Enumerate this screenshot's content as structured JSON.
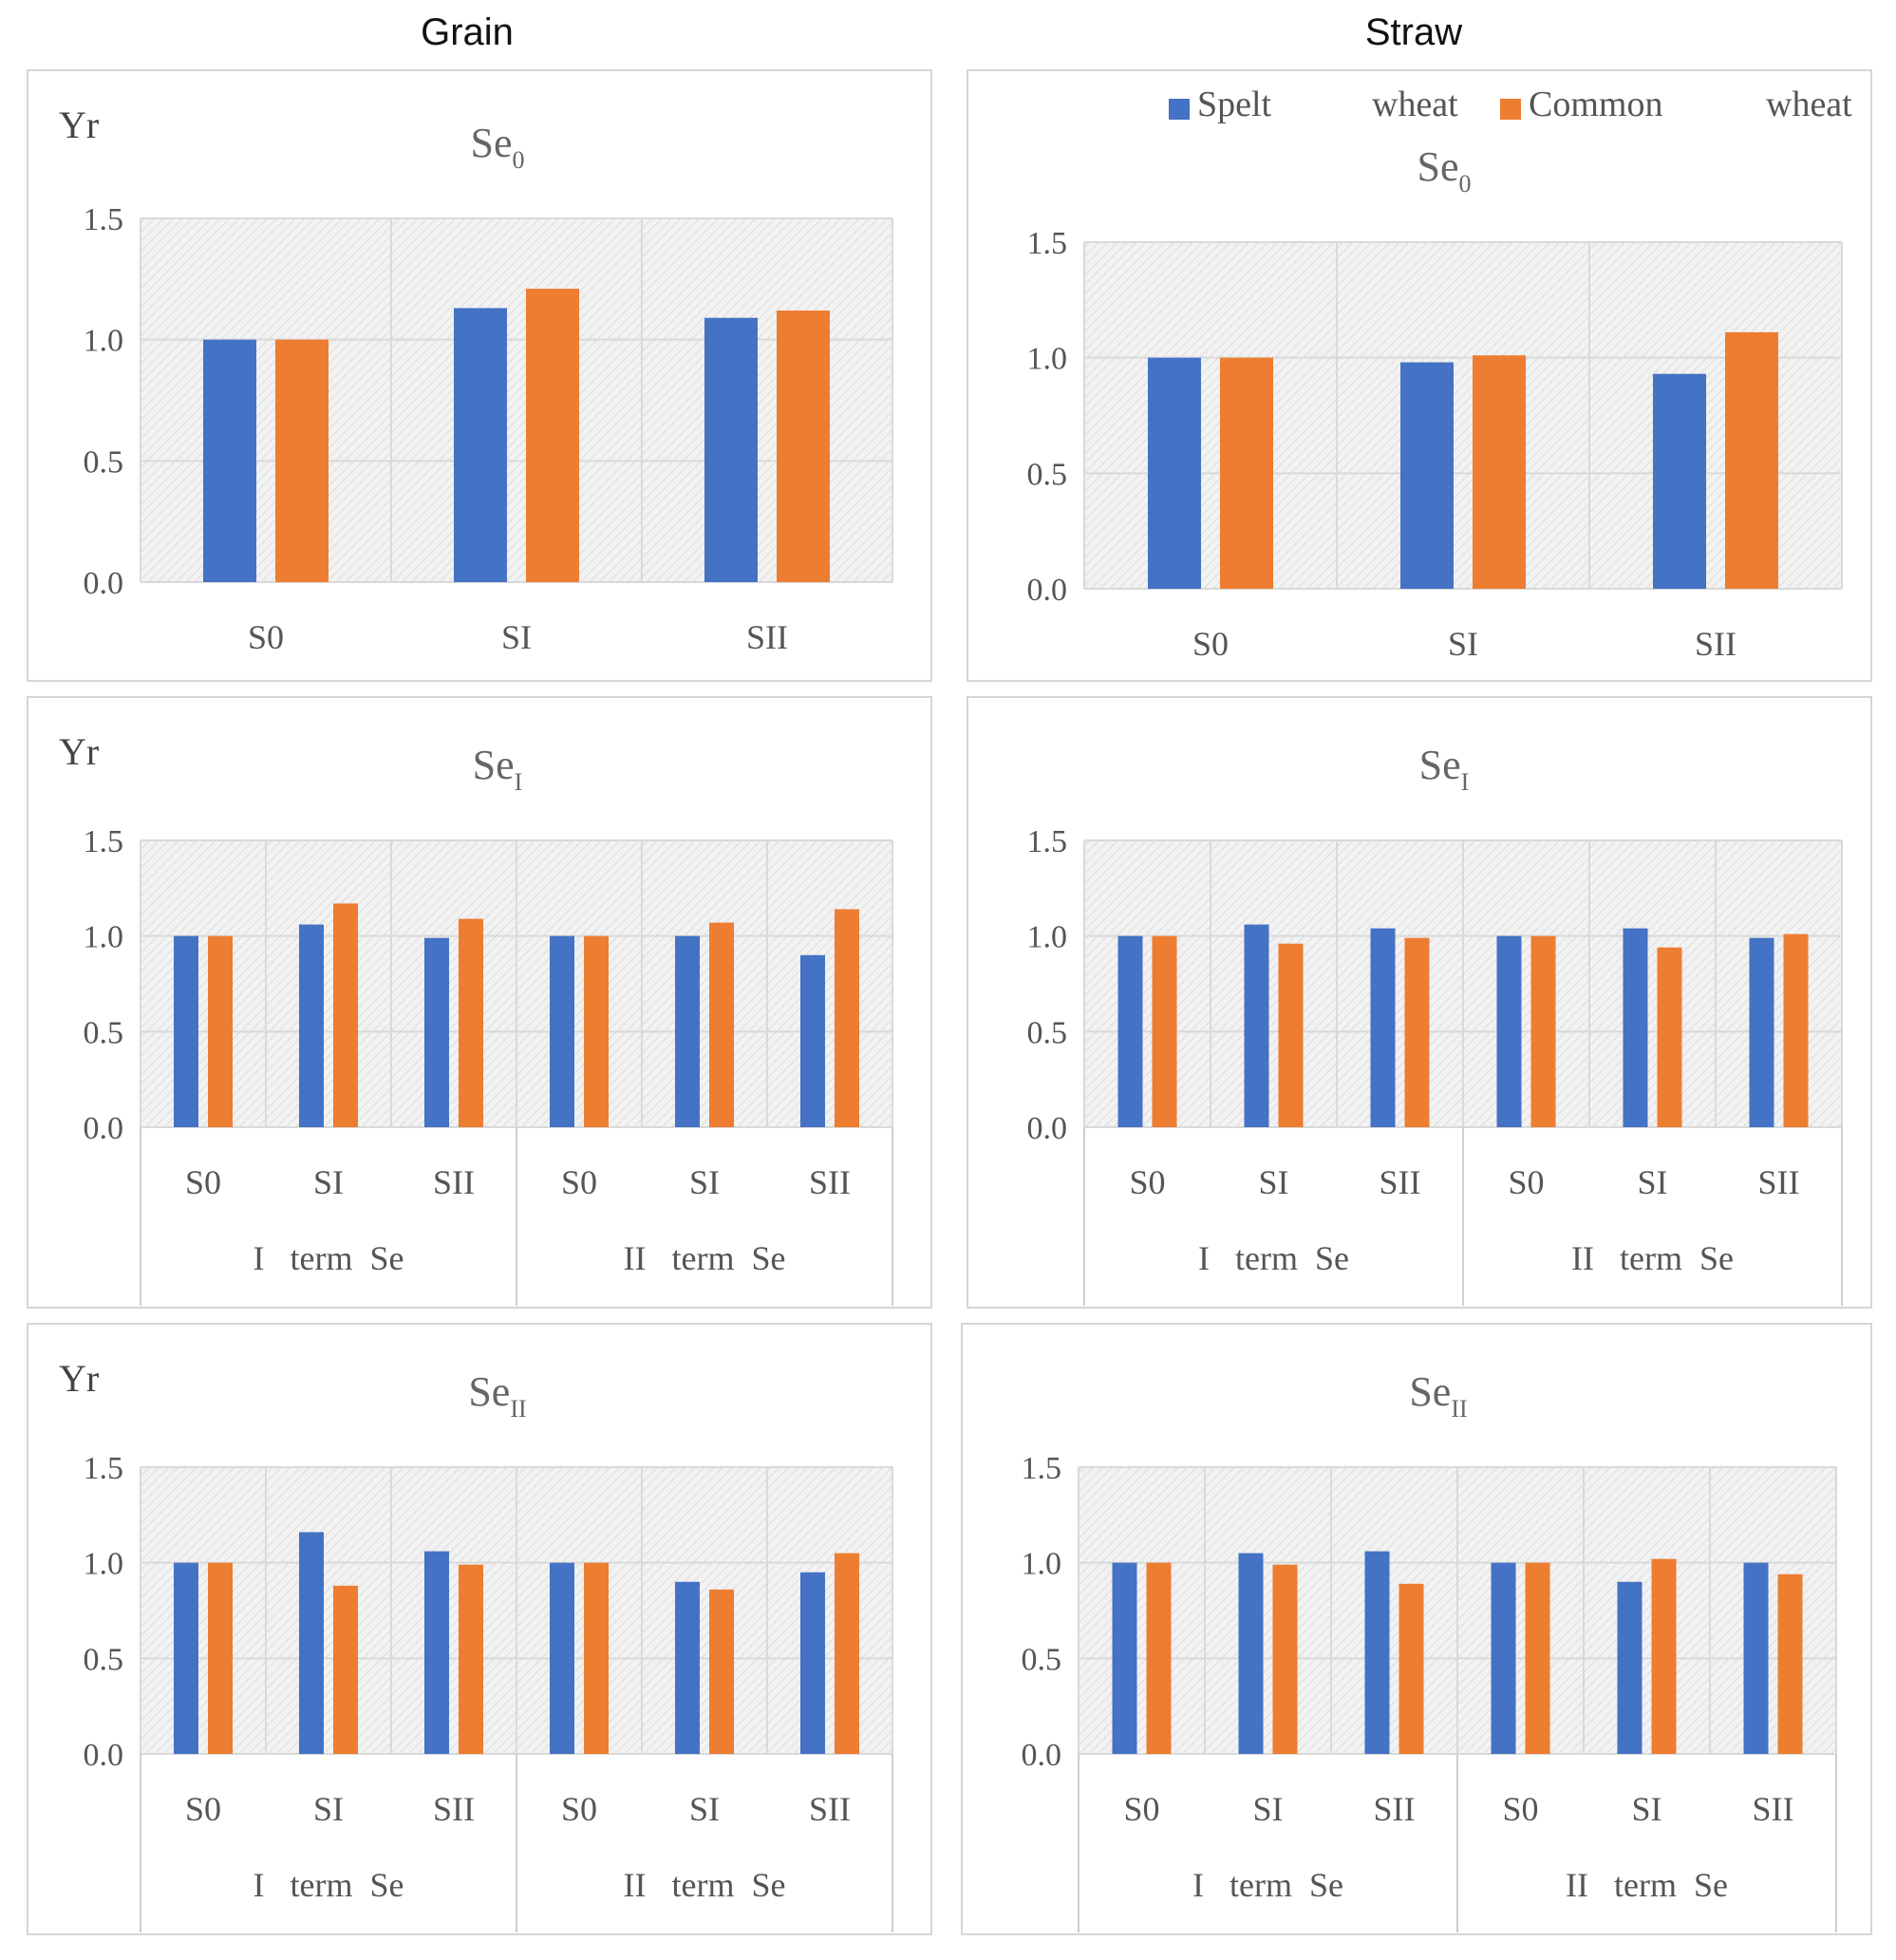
{
  "column_titles": {
    "grain": "Grain",
    "straw": "Straw"
  },
  "legend": {
    "items": [
      {
        "name": "Spelt",
        "suffix": "wheat",
        "color": "#4472C4"
      },
      {
        "name": "Common",
        "suffix": "wheat",
        "color": "#ED7D31"
      }
    ]
  },
  "colors": {
    "spelt": "#4472C4",
    "common": "#ED7D31",
    "grid": "#d9d9d9",
    "plot_bg": "#f2f2f2"
  },
  "chart_data": [
    {
      "id": "grain-se0",
      "type": "bar",
      "ylabel": "Yr",
      "title": "Se",
      "title_sub": "0",
      "ylim": [
        0,
        1.5
      ],
      "yticks": [
        "0.0",
        "0.5",
        "1.0",
        "1.5"
      ],
      "categories": [
        "S0",
        "SI",
        "SII"
      ],
      "groups": [],
      "series": [
        {
          "name": "Spelt wheat",
          "values": [
            1.0,
            1.13,
            1.09
          ]
        },
        {
          "name": "Common wheat",
          "values": [
            1.0,
            1.21,
            1.12
          ]
        }
      ]
    },
    {
      "id": "straw-se0",
      "type": "bar",
      "ylabel": "",
      "title": "Se",
      "title_sub": "0",
      "ylim": [
        0,
        1.5
      ],
      "yticks": [
        "0.0",
        "0.5",
        "1.0",
        "1.5"
      ],
      "categories": [
        "S0",
        "SI",
        "SII"
      ],
      "groups": [],
      "series": [
        {
          "name": "Spelt wheat",
          "values": [
            1.0,
            0.98,
            0.93
          ]
        },
        {
          "name": "Common wheat",
          "values": [
            1.0,
            1.01,
            1.11
          ]
        }
      ]
    },
    {
      "id": "grain-se1",
      "type": "bar",
      "ylabel": "Yr",
      "title": "Se",
      "title_sub": "I",
      "ylim": [
        0,
        1.5
      ],
      "yticks": [
        "0.0",
        "0.5",
        "1.0",
        "1.5"
      ],
      "categories": [
        "S0",
        "SI",
        "SII",
        "S0",
        "SI",
        "SII"
      ],
      "groups": [
        "I   term  Se",
        "II   term  Se"
      ],
      "series": [
        {
          "name": "Spelt wheat",
          "values": [
            1.0,
            1.06,
            0.99,
            1.0,
            1.0,
            0.9
          ]
        },
        {
          "name": "Common wheat",
          "values": [
            1.0,
            1.17,
            1.09,
            1.0,
            1.07,
            1.14
          ]
        }
      ]
    },
    {
      "id": "straw-se1",
      "type": "bar",
      "ylabel": "",
      "title": "Se",
      "title_sub": "I",
      "ylim": [
        0,
        1.5
      ],
      "yticks": [
        "0.0",
        "0.5",
        "1.0",
        "1.5"
      ],
      "categories": [
        "S0",
        "SI",
        "SII",
        "S0",
        "SI",
        "SII"
      ],
      "groups": [
        "I   term  Se",
        "II   term  Se"
      ],
      "series": [
        {
          "name": "Spelt wheat",
          "values": [
            1.0,
            1.06,
            1.04,
            1.0,
            1.04,
            0.99
          ]
        },
        {
          "name": "Common wheat",
          "values": [
            1.0,
            0.96,
            0.99,
            1.0,
            0.94,
            1.01
          ]
        }
      ]
    },
    {
      "id": "grain-se2",
      "type": "bar",
      "ylabel": "Yr",
      "title": "Se",
      "title_sub": "II",
      "ylim": [
        0,
        1.5
      ],
      "yticks": [
        "0.0",
        "0.5",
        "1.0",
        "1.5"
      ],
      "categories": [
        "S0",
        "SI",
        "SII",
        "S0",
        "SI",
        "SII"
      ],
      "groups": [
        "I   term  Se",
        "II   term  Se"
      ],
      "series": [
        {
          "name": "Spelt wheat",
          "values": [
            1.0,
            1.16,
            1.06,
            1.0,
            0.9,
            0.95
          ]
        },
        {
          "name": "Common wheat",
          "values": [
            1.0,
            0.88,
            0.99,
            1.0,
            0.86,
            1.05
          ]
        }
      ]
    },
    {
      "id": "straw-se2",
      "type": "bar",
      "ylabel": "",
      "title": "Se",
      "title_sub": "II",
      "ylim": [
        0,
        1.5
      ],
      "yticks": [
        "0.0",
        "0.5",
        "1.0",
        "1.5"
      ],
      "categories": [
        "S0",
        "SI",
        "SII",
        "S0",
        "SI",
        "SII"
      ],
      "groups": [
        "I   term  Se",
        "II   term  Se"
      ],
      "series": [
        {
          "name": "Spelt wheat",
          "values": [
            1.0,
            1.05,
            1.06,
            1.0,
            0.9,
            1.0
          ]
        },
        {
          "name": "Common wheat",
          "values": [
            1.0,
            0.99,
            0.89,
            1.0,
            1.02,
            0.94
          ]
        }
      ]
    }
  ]
}
